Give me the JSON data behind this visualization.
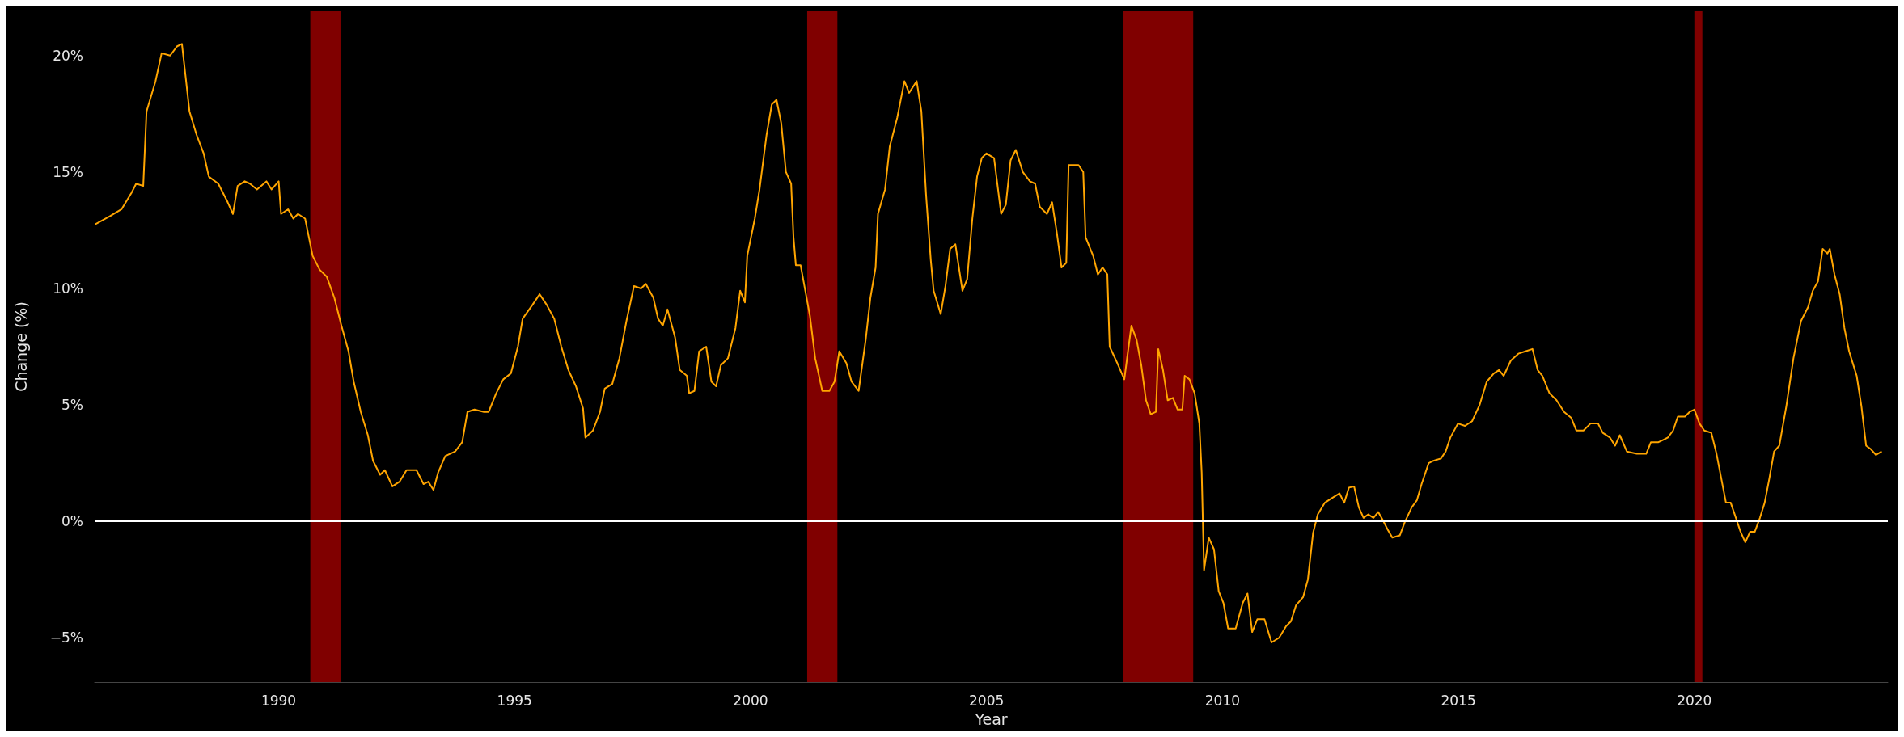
{
  "chart_data": {
    "type": "line",
    "xlabel": "Year",
    "ylabel": "Change (%)",
    "xlim": [
      1986.1,
      2024.1
    ],
    "xticks": [
      1990,
      1995,
      2000,
      2005,
      2010,
      2015,
      2020
    ],
    "ylim": [
      -6.9,
      21.9
    ],
    "yticks": [
      {
        "value": -5,
        "label": "−5%"
      },
      {
        "value": 0,
        "label": "0%"
      },
      {
        "value": 5,
        "label": "5%"
      },
      {
        "value": 10,
        "label": "10%"
      },
      {
        "value": 15,
        "label": "15%"
      },
      {
        "value": 20,
        "label": "20%"
      }
    ],
    "grid": false,
    "marker": "none",
    "line_style": "solid",
    "ref_lines": [
      {
        "axis": "y",
        "value": 0,
        "color": "#ffffff"
      }
    ],
    "bands": [
      {
        "axis": "x",
        "from": 1990.67,
        "to": 1991.31,
        "color": "#800000"
      },
      {
        "axis": "x",
        "from": 2001.2,
        "to": 2001.84,
        "color": "#800000"
      },
      {
        "axis": "x",
        "from": 2007.9,
        "to": 2009.38,
        "color": "#800000"
      },
      {
        "axis": "x",
        "from": 2020.0,
        "to": 2020.17,
        "color": "#800000"
      }
    ],
    "series": [
      {
        "color": "#ffa500",
        "x": [
          1986.11,
          1986.42,
          1986.67,
          1986.88,
          1986.98,
          1987.13,
          1987.2,
          1987.39,
          1987.52,
          1987.7,
          1987.85,
          1987.95,
          1988.11,
          1988.26,
          1988.41,
          1988.52,
          1988.72,
          1988.92,
          1989.03,
          1989.13,
          1989.28,
          1989.39,
          1989.54,
          1989.74,
          1989.85,
          1990.0,
          1990.05,
          1990.2,
          1990.31,
          1990.41,
          1990.56,
          1990.72,
          1990.87,
          1991.02,
          1991.18,
          1991.33,
          1991.48,
          1991.59,
          1991.74,
          1991.89,
          1992.0,
          1992.15,
          1992.25,
          1992.41,
          1992.56,
          1992.71,
          1992.92,
          1993.07,
          1993.17,
          1993.28,
          1993.38,
          1993.53,
          1993.74,
          1993.89,
          1994.0,
          1994.15,
          1994.35,
          1994.45,
          1994.61,
          1994.76,
          1994.92,
          1995.07,
          1995.17,
          1995.38,
          1995.53,
          1995.68,
          1995.84,
          1995.99,
          1996.14,
          1996.3,
          1996.45,
          1996.5,
          1996.66,
          1996.81,
          1996.91,
          1997.07,
          1997.22,
          1997.37,
          1997.53,
          1997.68,
          1997.78,
          1997.94,
          1998.04,
          1998.14,
          1998.24,
          1998.4,
          1998.5,
          1998.65,
          1998.7,
          1998.81,
          1998.91,
          1999.06,
          1999.17,
          1999.27,
          1999.37,
          1999.52,
          1999.68,
          1999.78,
          1999.88,
          1999.93,
          2000.09,
          2000.19,
          2000.34,
          2000.45,
          2000.55,
          2000.65,
          2000.75,
          2000.86,
          2000.91,
          2000.96,
          2001.06,
          2001.16,
          2001.26,
          2001.37,
          2001.52,
          2001.67,
          2001.78,
          2001.88,
          2002.03,
          2002.14,
          2002.29,
          2002.44,
          2002.54,
          2002.65,
          2002.7,
          2002.85,
          2002.95,
          2003.11,
          2003.26,
          2003.36,
          2003.52,
          2003.62,
          2003.72,
          2003.82,
          2003.88,
          2004.03,
          2004.13,
          2004.23,
          2004.34,
          2004.49,
          2004.59,
          2004.7,
          2004.8,
          2004.9,
          2005.0,
          2005.16,
          2005.31,
          2005.41,
          2005.51,
          2005.62,
          2005.77,
          2005.92,
          2006.03,
          2006.13,
          2006.28,
          2006.39,
          2006.49,
          2006.59,
          2006.69,
          2006.74,
          2006.95,
          2007.05,
          2007.1,
          2007.26,
          2007.36,
          2007.46,
          2007.56,
          2007.61,
          2007.77,
          2007.92,
          2008.07,
          2008.18,
          2008.28,
          2008.38,
          2008.48,
          2008.59,
          2008.64,
          2008.74,
          2008.84,
          2008.95,
          2009.05,
          2009.15,
          2009.2,
          2009.3,
          2009.41,
          2009.51,
          2009.56,
          2009.61,
          2009.71,
          2009.82,
          2009.92,
          2010.02,
          2010.12,
          2010.28,
          2010.43,
          2010.53,
          2010.63,
          2010.74,
          2010.89,
          2011.04,
          2011.2,
          2011.35,
          2011.45,
          2011.56,
          2011.71,
          2011.81,
          2011.92,
          2012.02,
          2012.17,
          2012.32,
          2012.48,
          2012.58,
          2012.68,
          2012.79,
          2012.89,
          2012.99,
          2013.09,
          2013.2,
          2013.3,
          2013.4,
          2013.5,
          2013.6,
          2013.76,
          2013.86,
          2014.01,
          2014.12,
          2014.22,
          2014.37,
          2014.47,
          2014.63,
          2014.73,
          2014.83,
          2014.99,
          2015.14,
          2015.29,
          2015.45,
          2015.6,
          2015.75,
          2015.86,
          2015.96,
          2016.11,
          2016.27,
          2016.42,
          2016.57,
          2016.68,
          2016.78,
          2016.93,
          2017.08,
          2017.24,
          2017.39,
          2017.5,
          2017.65,
          2017.8,
          2017.96,
          2018.06,
          2018.21,
          2018.32,
          2018.42,
          2018.57,
          2018.78,
          2018.98,
          2019.08,
          2019.24,
          2019.34,
          2019.44,
          2019.55,
          2019.65,
          2019.8,
          2019.9,
          2020.0,
          2020.11,
          2020.21,
          2020.36,
          2020.47,
          2020.57,
          2020.67,
          2020.77,
          2020.88,
          2020.98,
          2021.08,
          2021.18,
          2021.28,
          2021.39,
          2021.49,
          2021.59,
          2021.69,
          2021.8,
          2021.95,
          2022.1,
          2022.26,
          2022.41,
          2022.51,
          2022.62,
          2022.72,
          2022.82,
          2022.87,
          2022.97,
          2023.08,
          2023.18,
          2023.28,
          2023.44,
          2023.54,
          2023.64,
          2023.74,
          2023.85,
          2023.97
        ],
        "values": [
          12.75,
          13.1,
          13.4,
          14.1,
          14.5,
          14.4,
          17.6,
          18.9,
          20.1,
          20.0,
          20.4,
          20.5,
          17.6,
          16.6,
          15.8,
          14.8,
          14.5,
          13.7,
          13.2,
          14.4,
          14.6,
          14.5,
          14.25,
          14.6,
          14.25,
          14.6,
          13.2,
          13.4,
          13.0,
          13.2,
          13.0,
          11.4,
          10.8,
          10.5,
          9.6,
          8.4,
          7.3,
          6.0,
          4.7,
          3.7,
          2.6,
          2.0,
          2.2,
          1.5,
          1.7,
          2.2,
          2.2,
          1.6,
          1.7,
          1.35,
          2.1,
          2.8,
          3.0,
          3.4,
          4.7,
          4.8,
          4.7,
          4.7,
          5.5,
          6.1,
          6.35,
          7.5,
          8.7,
          9.3,
          9.75,
          9.3,
          8.7,
          7.5,
          6.5,
          5.8,
          4.85,
          3.6,
          3.9,
          4.7,
          5.7,
          5.9,
          7.0,
          8.6,
          10.1,
          10.0,
          10.2,
          9.6,
          8.7,
          8.4,
          9.1,
          7.9,
          6.5,
          6.25,
          5.5,
          5.6,
          7.3,
          7.5,
          6.0,
          5.8,
          6.7,
          7.0,
          8.3,
          9.9,
          9.4,
          11.4,
          13.0,
          14.25,
          16.6,
          17.9,
          18.1,
          17.1,
          15.0,
          14.5,
          12.2,
          11.0,
          11.0,
          9.9,
          8.8,
          7.0,
          5.6,
          5.6,
          6.0,
          7.3,
          6.8,
          6.0,
          5.6,
          7.8,
          9.6,
          10.9,
          13.2,
          14.25,
          16.1,
          17.35,
          18.9,
          18.4,
          18.9,
          17.6,
          14.0,
          11.2,
          9.9,
          8.9,
          10.1,
          11.7,
          11.9,
          9.9,
          10.4,
          13.0,
          14.8,
          15.6,
          15.8,
          15.6,
          13.2,
          13.6,
          15.5,
          15.95,
          15.0,
          14.6,
          14.5,
          13.5,
          13.2,
          13.7,
          12.4,
          10.9,
          11.1,
          15.3,
          15.3,
          15.0,
          12.2,
          11.4,
          10.6,
          10.9,
          10.6,
          7.5,
          6.8,
          6.1,
          8.4,
          7.8,
          6.7,
          5.2,
          4.6,
          4.7,
          7.4,
          6.5,
          5.2,
          5.3,
          4.8,
          4.8,
          6.25,
          6.1,
          5.5,
          4.2,
          2.1,
          -2.1,
          -0.7,
          -1.2,
          -3.0,
          -3.5,
          -4.6,
          -4.6,
          -3.5,
          -3.1,
          -4.75,
          -4.2,
          -4.2,
          -5.2,
          -5.0,
          -4.5,
          -4.3,
          -3.6,
          -3.25,
          -2.5,
          -0.5,
          0.3,
          0.8,
          1.0,
          1.2,
          0.8,
          1.45,
          1.5,
          0.6,
          0.15,
          0.3,
          0.15,
          0.4,
          0.05,
          -0.35,
          -0.7,
          -0.6,
          -0.05,
          0.6,
          0.9,
          1.6,
          2.5,
          2.6,
          2.7,
          3.0,
          3.6,
          4.2,
          4.1,
          4.3,
          5.0,
          6.0,
          6.35,
          6.5,
          6.25,
          6.9,
          7.2,
          7.3,
          7.4,
          6.5,
          6.25,
          5.5,
          5.2,
          4.7,
          4.45,
          3.9,
          3.9,
          4.2,
          4.2,
          3.8,
          3.6,
          3.25,
          3.7,
          3.0,
          2.9,
          2.9,
          3.4,
          3.4,
          3.5,
          3.6,
          3.9,
          4.5,
          4.5,
          4.7,
          4.8,
          4.2,
          3.9,
          3.8,
          2.9,
          1.85,
          0.8,
          0.8,
          0.15,
          -0.45,
          -0.9,
          -0.45,
          -0.45,
          0.15,
          0.8,
          1.85,
          3.0,
          3.25,
          4.95,
          7.0,
          8.6,
          9.2,
          9.9,
          10.3,
          11.7,
          11.5,
          11.7,
          10.6,
          9.75,
          8.3,
          7.3,
          6.25,
          4.95,
          3.25,
          3.1,
          2.85,
          3.0
        ]
      }
    ]
  }
}
